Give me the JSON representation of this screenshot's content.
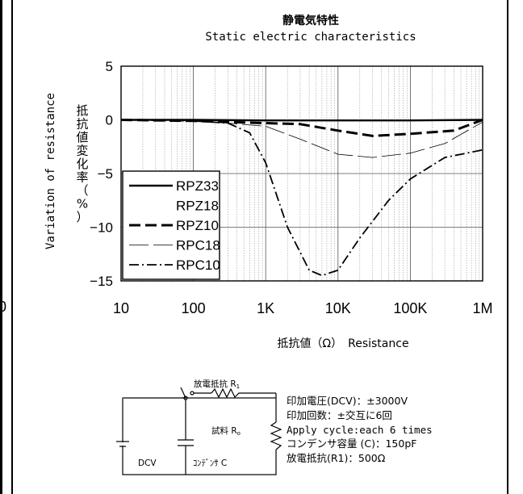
{
  "left_edge_label": "0",
  "chart_data": {
    "type": "line",
    "title": "静電気特性",
    "subtitle": "Static electric characteristics",
    "xlabel": "抵抗値（Ω）　Resistance",
    "ylabel_en": "Variation of resistance",
    "ylabel_jp": "抵抗値変化率（%）",
    "x_scale": "log",
    "xlim": [
      10,
      1000000
    ],
    "ylim": [
      -15,
      5
    ],
    "x_ticks": [
      10,
      100,
      1000,
      10000,
      100000,
      1000000
    ],
    "x_tick_labels": [
      "10",
      "100",
      "1K",
      "10K",
      "100K",
      "1M"
    ],
    "y_ticks": [
      5,
      0,
      -5,
      -10,
      -15
    ],
    "y_tick_labels": [
      "5",
      "0",
      "−5",
      "−10",
      "−15"
    ],
    "grid": true,
    "legend_position": "bottom-left",
    "series": [
      {
        "name": "RPZ33",
        "style": "solid-thick",
        "x": [
          10,
          100,
          1000,
          10000,
          100000,
          1000000
        ],
        "y": [
          0,
          0,
          -0.05,
          -0.05,
          -0.05,
          0
        ]
      },
      {
        "name": "RPZ18",
        "style": "none",
        "x": [
          10,
          100,
          1000,
          10000,
          100000,
          1000000
        ],
        "y": [
          0,
          0,
          -0.1,
          -0.2,
          -0.1,
          0
        ]
      },
      {
        "name": "RPZ10",
        "style": "dashed-thick",
        "x": [
          10,
          100,
          300,
          1000,
          3000,
          10000,
          30000,
          100000,
          400000,
          1000000
        ],
        "y": [
          0,
          -0.1,
          -0.2,
          -0.3,
          -0.4,
          -1.0,
          -1.5,
          -1.3,
          -1.0,
          0
        ]
      },
      {
        "name": "RPC18",
        "style": "long-dash-thin",
        "x": [
          10,
          100,
          300,
          1000,
          3000,
          10000,
          30000,
          100000,
          300000,
          1000000
        ],
        "y": [
          0,
          -0.1,
          -0.3,
          -0.6,
          -1.8,
          -3.2,
          -3.5,
          -3.1,
          -2.2,
          -0.2
        ]
      },
      {
        "name": "RPC10",
        "style": "dash-dot",
        "x": [
          10,
          100,
          300,
          600,
          1000,
          2000,
          4000,
          6000,
          10000,
          20000,
          50000,
          100000,
          300000,
          1000000
        ],
        "y": [
          0,
          -0.1,
          -0.3,
          -1.2,
          -4.0,
          -10.0,
          -14.0,
          -14.5,
          -14.0,
          -11.0,
          -7.5,
          -5.5,
          -3.5,
          -2.8
        ]
      }
    ]
  },
  "circuit": {
    "r1_label": "放電抵抗 R",
    "r1_sub": "1",
    "ro_label": "試料 R",
    "ro_sub": "o",
    "dcv_label": "DCV",
    "cap_label": "ｺﾝﾃﾞﾝｻ C"
  },
  "info": [
    "印加電圧(DCV)：±3000V",
    "印加回数：±交互に6回",
    "Apply cycle:each 6 times",
    "コンデンサ容量 (C)：150pF",
    "放電抵抗(R1)：500Ω"
  ]
}
